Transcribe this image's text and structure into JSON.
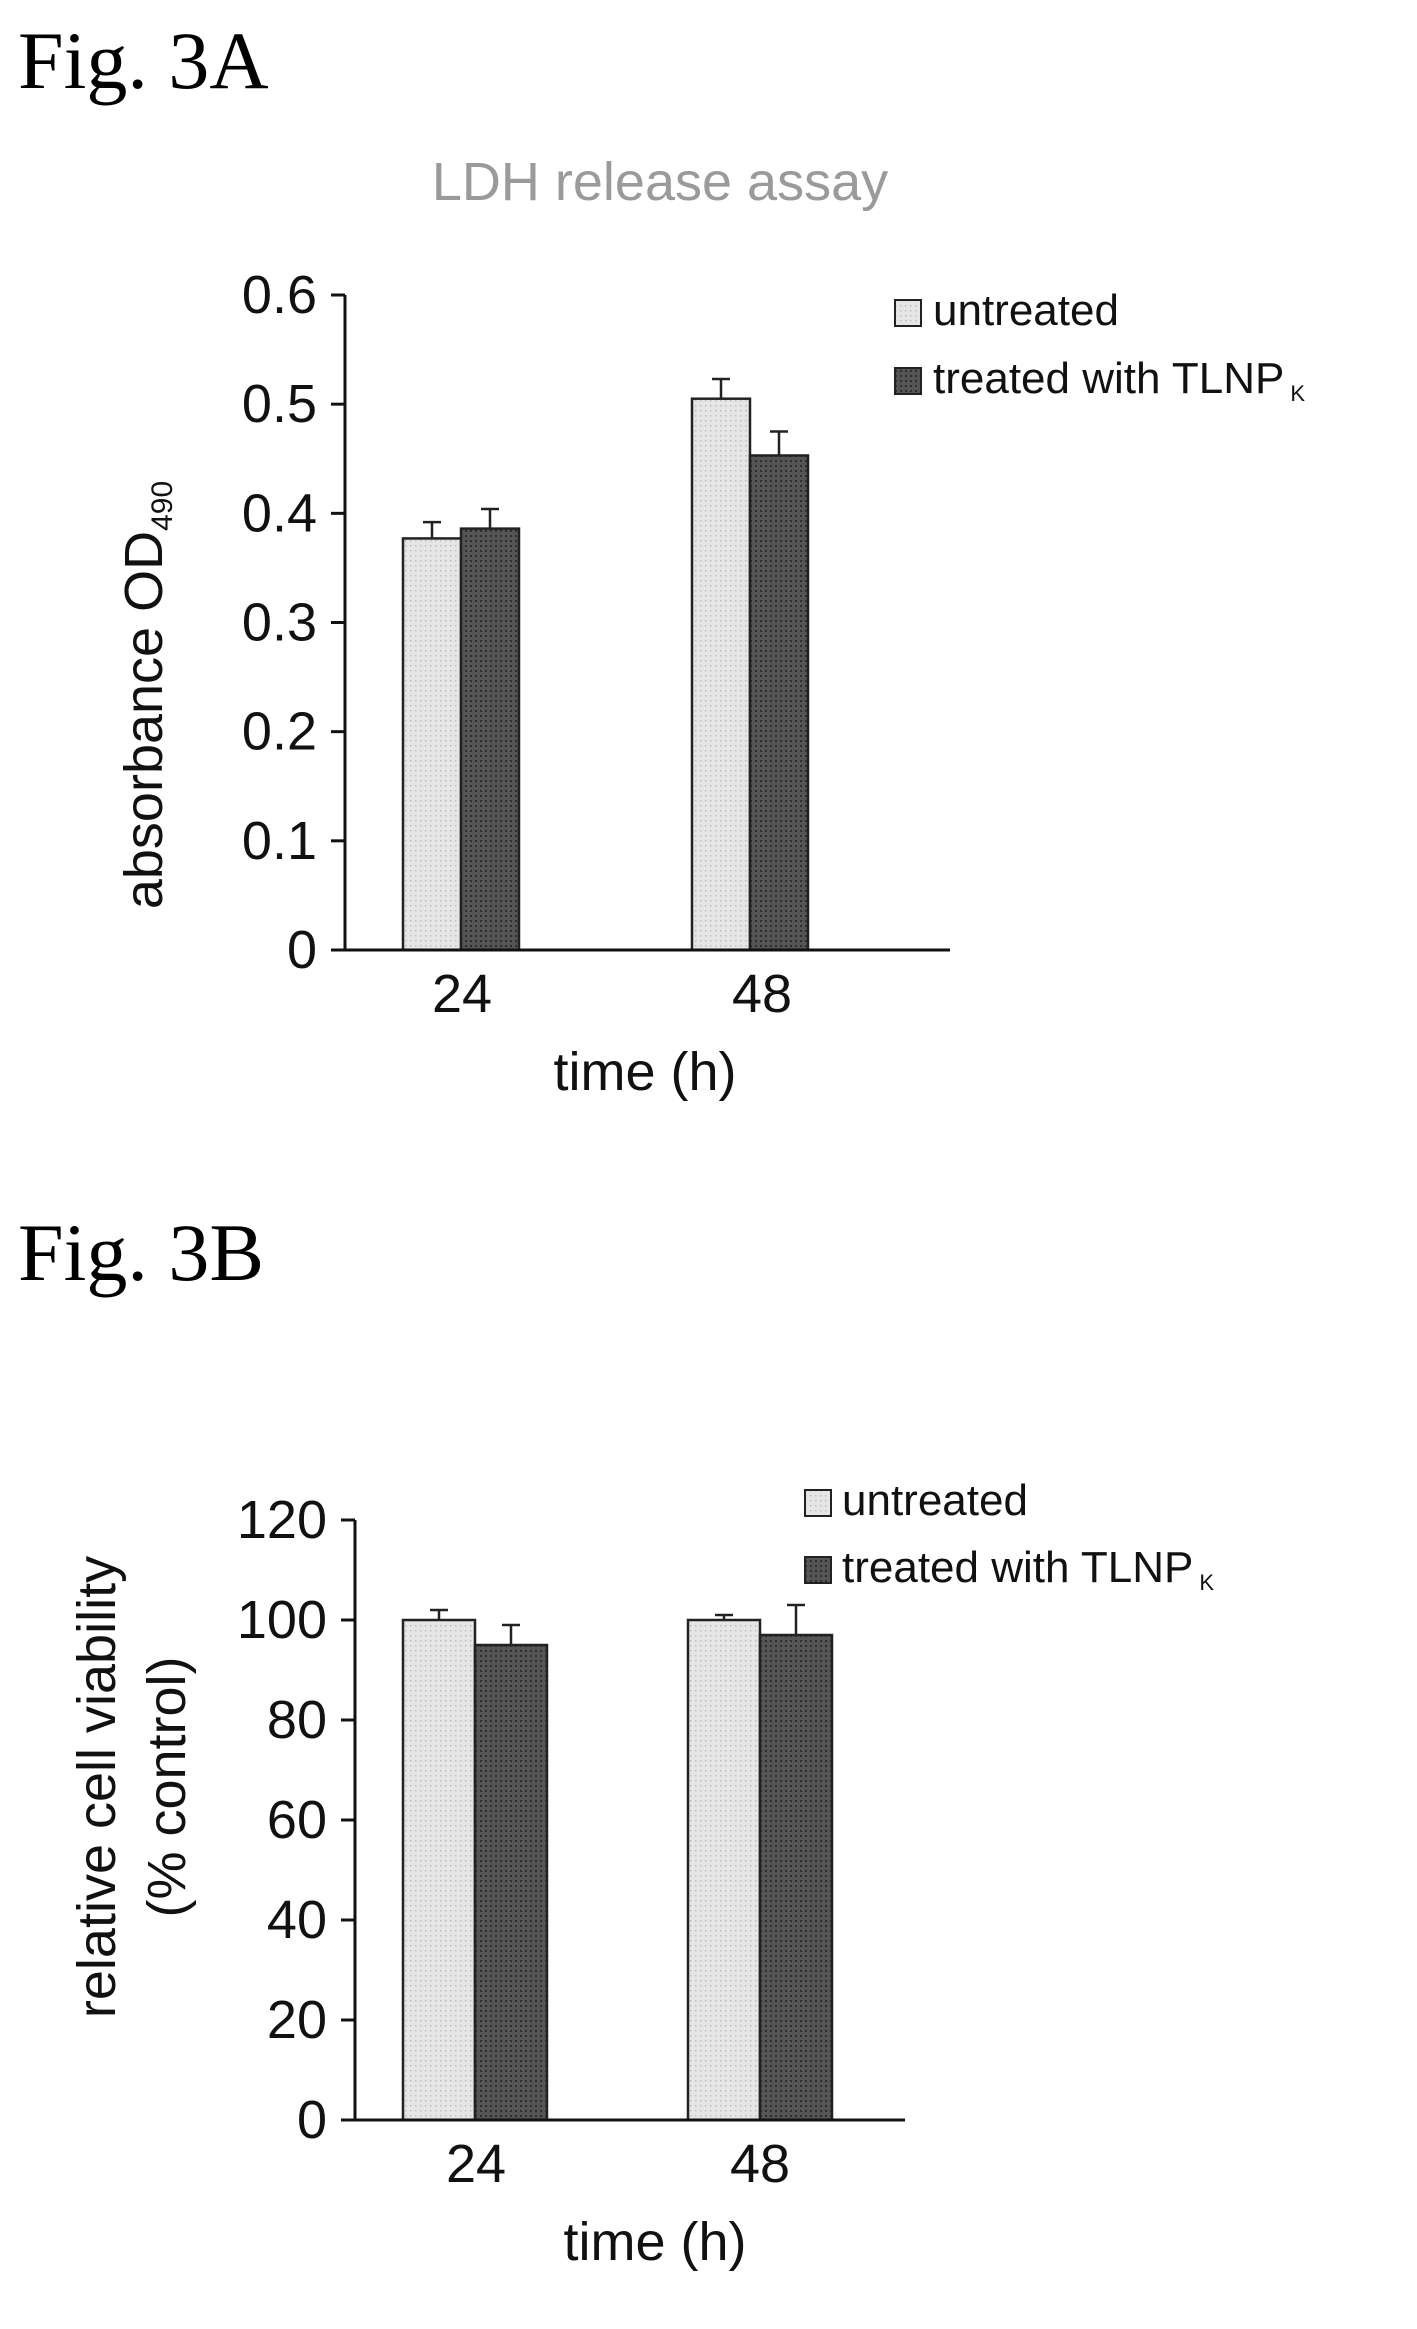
{
  "figures": [
    {
      "label": "Fig. 3A"
    },
    {
      "label": "Fig. 3B"
    }
  ],
  "chart_data": [
    {
      "type": "bar",
      "title": "LDH release assay",
      "xlabel": "time (h)",
      "ylabel": "absorbance OD",
      "ylabel_sub": "490",
      "categories": [
        "24",
        "48"
      ],
      "ylim": [
        0,
        0.6
      ],
      "yticks": [
        "0",
        "0.1",
        "0.2",
        "0.3",
        "0.4",
        "0.5",
        "0.6"
      ],
      "ytick_values": [
        0,
        0.1,
        0.2,
        0.3,
        0.4,
        0.5,
        0.6
      ],
      "grid": false,
      "legend_position": "top-right",
      "series": [
        {
          "name": "untreated",
          "color": "#e3e3e3",
          "values": [
            0.377,
            0.505
          ],
          "errors": [
            0.015,
            0.018
          ]
        },
        {
          "name": "treated with TLNP",
          "name_sub": "K",
          "color": "#4a4a4a",
          "values": [
            0.386,
            0.453
          ],
          "errors": [
            0.018,
            0.022
          ]
        }
      ]
    },
    {
      "type": "bar",
      "title": "",
      "xlabel": "time (h)",
      "ylabel": "relative cell viability",
      "ylabel_line2": "(% control)",
      "categories": [
        "24",
        "48"
      ],
      "ylim": [
        0,
        120
      ],
      "yticks": [
        "0",
        "20",
        "40",
        "60",
        "80",
        "100",
        "120"
      ],
      "ytick_values": [
        0,
        20,
        40,
        60,
        80,
        100,
        120
      ],
      "grid": false,
      "legend_position": "top-right",
      "series": [
        {
          "name": "untreated",
          "color": "#e3e3e3",
          "values": [
            100,
            100
          ],
          "errors": [
            2,
            1
          ]
        },
        {
          "name": "treated with TLNP",
          "name_sub": "K",
          "color": "#4a4a4a",
          "values": [
            95,
            97
          ],
          "errors": [
            4,
            6
          ]
        }
      ]
    }
  ]
}
